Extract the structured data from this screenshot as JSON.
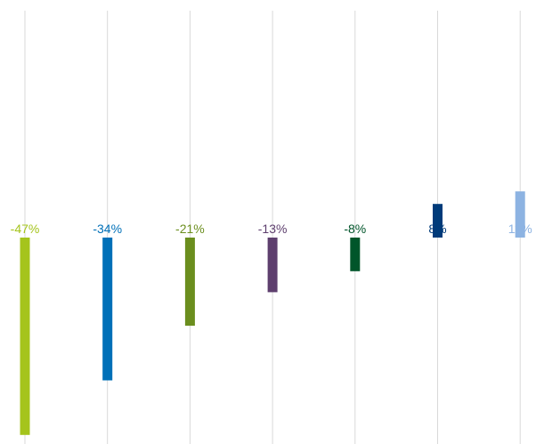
{
  "chart_data": {
    "type": "bar",
    "orientation": "vertical",
    "title": "",
    "xlabel": "",
    "ylabel": "",
    "grid": "vertical-lines",
    "legend": "none",
    "bars": [
      {
        "value": -47,
        "label": "-47%",
        "color": "#a5c41c"
      },
      {
        "value": -34,
        "label": "-34%",
        "color": "#0070b8"
      },
      {
        "value": -21,
        "label": "-21%",
        "color": "#6b8e1e"
      },
      {
        "value": -13,
        "label": "-13%",
        "color": "#5e3f6e"
      },
      {
        "value": -8,
        "label": "-8%",
        "color": "#00552a"
      },
      {
        "value": 8,
        "label": "8%",
        "color": "#003b7a"
      },
      {
        "value": 11,
        "label": "11%",
        "color": "#8db3e2"
      }
    ]
  }
}
